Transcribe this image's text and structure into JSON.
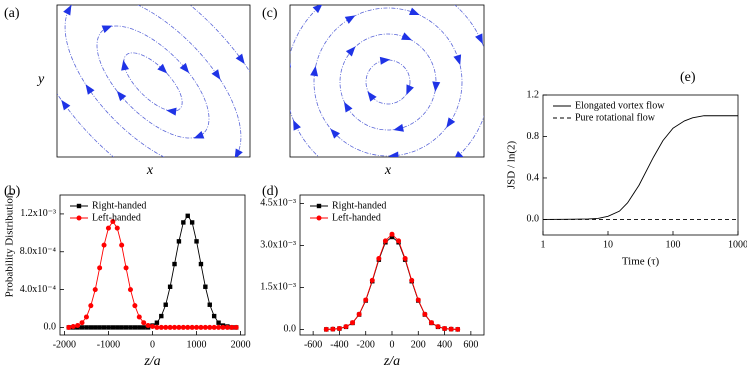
{
  "flow_panels": [
    {
      "label": "(a)",
      "xlabel": "x",
      "ylabel": "y"
    },
    {
      "label": "(c)",
      "xlabel": "x"
    }
  ],
  "chart_data": [
    {
      "type": "line",
      "label": "(b)",
      "xlabel": "z/a",
      "ylabel": "Probability Distribution",
      "x": [
        -1900,
        -1800,
        -1700,
        -1600,
        -1500,
        -1400,
        -1300,
        -1200,
        -1100,
        -1000,
        -900,
        -800,
        -700,
        -600,
        -500,
        -400,
        -300,
        -200,
        -100,
        0,
        100,
        200,
        300,
        400,
        500,
        600,
        700,
        800,
        900,
        1000,
        1100,
        1200,
        1300,
        1400,
        1500,
        1600,
        1700,
        1800,
        1900
      ],
      "series": [
        {
          "name": "Right-handed",
          "color": "#000000",
          "marker": "square",
          "values": [
            0,
            0,
            0,
            0,
            0,
            0,
            0,
            0,
            0,
            0,
            0,
            0,
            0,
            0,
            0,
            0,
            0,
            0,
            0,
            2e-05,
            5e-05,
            0.00012,
            0.00024,
            0.00043,
            0.00067,
            0.00091,
            0.00111,
            0.00118,
            0.00111,
            0.00091,
            0.00067,
            0.00043,
            0.00024,
            0.00012,
            5e-05,
            2e-05,
            1e-05,
            0,
            0
          ]
        },
        {
          "name": "Left-handed",
          "color": "#ff0000",
          "marker": "circle",
          "values": [
            0,
            1e-05,
            2e-05,
            5e-05,
            0.00011,
            0.00023,
            0.0004,
            0.00063,
            0.00087,
            0.00105,
            0.00112,
            0.00105,
            0.00087,
            0.00063,
            0.0004,
            0.00023,
            0.00011,
            5e-05,
            2e-05,
            1e-05,
            0,
            0,
            0,
            0,
            0,
            0,
            0,
            0,
            0,
            0,
            0,
            0,
            0,
            0,
            0,
            0,
            0,
            0,
            0
          ]
        }
      ],
      "xlim": [
        -2100,
        2100
      ],
      "xticks": [
        -2000,
        -1000,
        0,
        1000,
        2000
      ],
      "ylim": [
        -8e-05,
        0.0014
      ],
      "yticks": [
        {
          "value": 0,
          "label": "0.0"
        },
        {
          "value": 0.0004,
          "label": "4.0x10⁻⁴"
        },
        {
          "value": 0.0008,
          "label": "8.0x10⁻⁴"
        },
        {
          "value": 0.0012,
          "label": "1.2x10⁻³"
        }
      ],
      "legend": "upper left"
    },
    {
      "type": "line",
      "label": "(d)",
      "xlabel": "z/a",
      "x": [
        -500,
        -450,
        -400,
        -350,
        -300,
        -250,
        -200,
        -150,
        -100,
        -50,
        0,
        50,
        100,
        150,
        200,
        250,
        300,
        350,
        400,
        450,
        500
      ],
      "series": [
        {
          "name": "Right-handed",
          "color": "#000000",
          "marker": "square",
          "values": [
            0,
            1e-05,
            3e-05,
            9e-05,
            0.00023,
            0.00053,
            0.00103,
            0.00172,
            0.00249,
            0.00311,
            0.0033,
            0.00311,
            0.00249,
            0.00172,
            0.00103,
            0.00053,
            0.00023,
            9e-05,
            3e-05,
            1e-05,
            0
          ]
        },
        {
          "name": "Left-handed",
          "color": "#ff0000",
          "marker": "circle",
          "values": [
            0,
            1e-05,
            3e-05,
            0.0001,
            0.00024,
            0.00054,
            0.00105,
            0.00175,
            0.00253,
            0.00316,
            0.0034,
            0.00316,
            0.00253,
            0.00175,
            0.00105,
            0.00054,
            0.00024,
            0.0001,
            3e-05,
            1e-05,
            0
          ]
        }
      ],
      "xlim": [
        -700,
        700
      ],
      "xticks": [
        -600,
        -400,
        -200,
        0,
        200,
        400,
        600
      ],
      "ylim": [
        -0.0002,
        0.0048
      ],
      "yticks": [
        {
          "value": 0,
          "label": "0.0"
        },
        {
          "value": 0.0015,
          "label": "1.5x10⁻³"
        },
        {
          "value": 0.003,
          "label": "3.0x10⁻³"
        },
        {
          "value": 0.0045,
          "label": "4.5x10⁻³"
        }
      ],
      "legend": "upper left"
    },
    {
      "type": "line",
      "label": "(e)",
      "xlabel": "Time (τ)",
      "ylabel": "JSD / ln(2)",
      "x": [
        1,
        2,
        3,
        5,
        7,
        10,
        15,
        20,
        30,
        50,
        70,
        100,
        150,
        200,
        300,
        500,
        1000
      ],
      "series": [
        {
          "name": "Elongated vortex flow",
          "color": "#000000",
          "dash": "solid",
          "values": [
            0,
            0.001,
            0.002,
            0.005,
            0.01,
            0.03,
            0.08,
            0.16,
            0.33,
            0.6,
            0.76,
            0.88,
            0.95,
            0.98,
            1.0,
            1.0,
            1.0
          ]
        },
        {
          "name": "Pure rotational flow",
          "color": "#000000",
          "dash": "dashed",
          "values": [
            0,
            0,
            0,
            0,
            0,
            0,
            0,
            0,
            0,
            0,
            0,
            0,
            0,
            0,
            0,
            0,
            0
          ]
        }
      ],
      "xscale": "log",
      "xlim": [
        1,
        1000
      ],
      "xticks": [
        1,
        10,
        100,
        1000
      ],
      "ylim": [
        -0.15,
        1.2
      ],
      "yticks": [
        {
          "value": 0,
          "label": "0.0"
        },
        0.4,
        0.8,
        1.2
      ],
      "legend": "upper left"
    }
  ]
}
